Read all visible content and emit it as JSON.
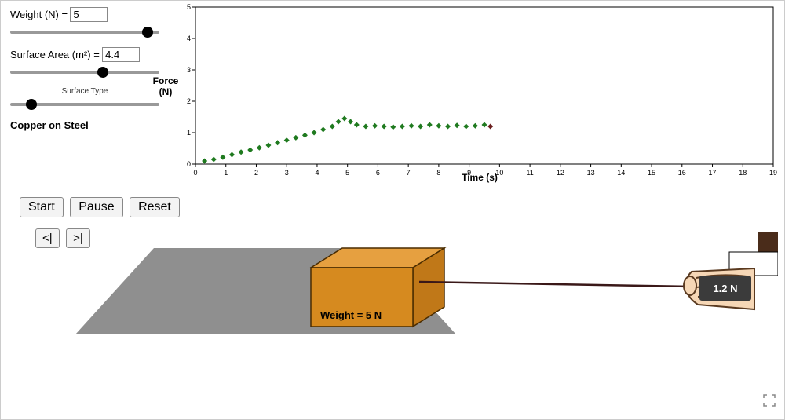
{
  "controls": {
    "weight": {
      "label": "Weight (N) =",
      "value": "5",
      "slider_pos": 92
    },
    "area": {
      "label": "Surface Area (m²) =",
      "value": "4.4",
      "slider_pos": 62
    },
    "surface": {
      "label": "Surface Type",
      "value": "Copper on Steel",
      "slider_pos": 14
    }
  },
  "buttons": {
    "start": "Start",
    "pause": "Pause",
    "reset": "Reset",
    "step_back": "<|",
    "step_fwd": ">|"
  },
  "chart": {
    "type": "scatter",
    "ylabel": "Force (N)",
    "xlabel": "Time (s)",
    "xlim": [
      0,
      19
    ],
    "ylim": [
      0,
      5
    ],
    "xtick_step": 1,
    "ytick_step": 1,
    "tick_fontsize": 9,
    "label_fontsize": 12,
    "background_color": "#ffffff",
    "border_color": "#000000",
    "marker": "diamond",
    "marker_size": 7,
    "series_color": "#1f7a1f",
    "last_point_color": "#6b1e1e",
    "data": [
      {
        "t": 0.3,
        "f": 0.1
      },
      {
        "t": 0.6,
        "f": 0.15
      },
      {
        "t": 0.9,
        "f": 0.22
      },
      {
        "t": 1.2,
        "f": 0.3
      },
      {
        "t": 1.5,
        "f": 0.38
      },
      {
        "t": 1.8,
        "f": 0.45
      },
      {
        "t": 2.1,
        "f": 0.52
      },
      {
        "t": 2.4,
        "f": 0.6
      },
      {
        "t": 2.7,
        "f": 0.68
      },
      {
        "t": 3.0,
        "f": 0.76
      },
      {
        "t": 3.3,
        "f": 0.84
      },
      {
        "t": 3.6,
        "f": 0.92
      },
      {
        "t": 3.9,
        "f": 1.0
      },
      {
        "t": 4.2,
        "f": 1.1
      },
      {
        "t": 4.5,
        "f": 1.2
      },
      {
        "t": 4.7,
        "f": 1.35
      },
      {
        "t": 4.9,
        "f": 1.45
      },
      {
        "t": 5.1,
        "f": 1.35
      },
      {
        "t": 5.3,
        "f": 1.25
      },
      {
        "t": 5.6,
        "f": 1.2
      },
      {
        "t": 5.9,
        "f": 1.22
      },
      {
        "t": 6.2,
        "f": 1.2
      },
      {
        "t": 6.5,
        "f": 1.18
      },
      {
        "t": 6.8,
        "f": 1.2
      },
      {
        "t": 7.1,
        "f": 1.22
      },
      {
        "t": 7.4,
        "f": 1.2
      },
      {
        "t": 7.7,
        "f": 1.25
      },
      {
        "t": 8.0,
        "f": 1.22
      },
      {
        "t": 8.3,
        "f": 1.2
      },
      {
        "t": 8.6,
        "f": 1.23
      },
      {
        "t": 8.9,
        "f": 1.2
      },
      {
        "t": 9.2,
        "f": 1.22
      },
      {
        "t": 9.5,
        "f": 1.25
      },
      {
        "t": 9.7,
        "f": 1.2
      }
    ]
  },
  "sim": {
    "weight_label": "Weight = 5  N",
    "force_reading": "1.2 N",
    "colors": {
      "floor": "#8f8f8f",
      "box_front": "#d68a1f",
      "box_top": "#e6a040",
      "box_side": "#c07818",
      "box_edge": "#4a2c00",
      "rope": "#3a1818",
      "gauge_body": "#3b3b3b",
      "gauge_text": "#ffffff",
      "skin": "#f6d7b6",
      "sleeve": "#4a2c1a",
      "cuff": "#ffffff"
    }
  }
}
